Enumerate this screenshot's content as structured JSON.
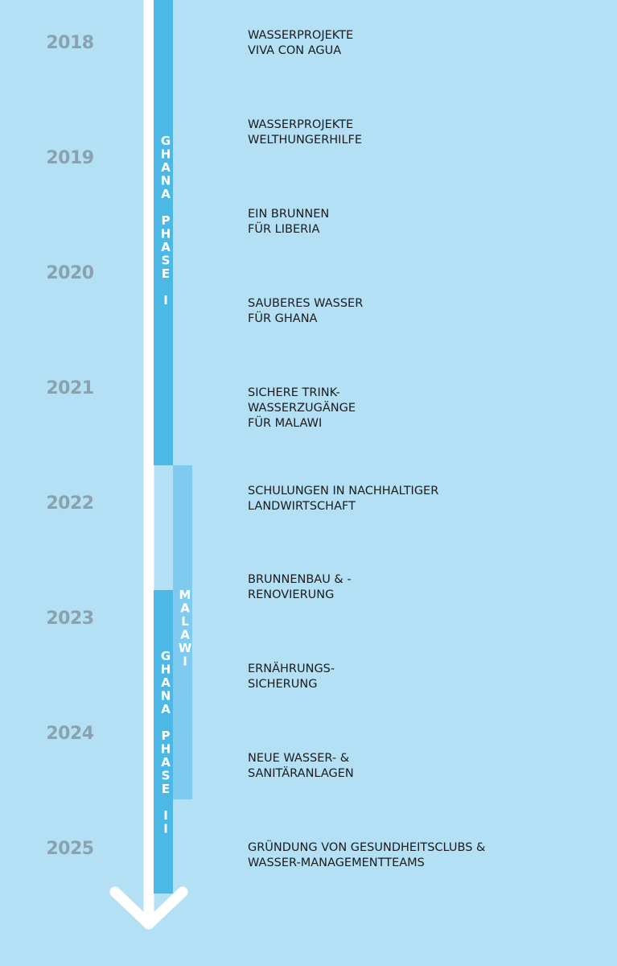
{
  "years": [
    "2018",
    "2019",
    "2020",
    "2021",
    "2022",
    "2023",
    "2024",
    "2025"
  ],
  "phases": [
    "GHANA PHASE I",
    "MALAWI",
    "GHANA PHASE II"
  ],
  "projects": [
    {
      "lines": [
        "WASSERPROJEKTE",
        "VIVA CON AGUA"
      ]
    },
    {
      "lines": [
        "WASSERPROJEKTE",
        "WELTHUNGERHILFE"
      ]
    },
    {
      "lines": [
        "EIN BRUNNEN",
        "FÜR LIBERIA"
      ]
    },
    {
      "lines": [
        "SAUBERES WASSER",
        "FÜR GHANA"
      ]
    },
    {
      "lines": [
        "SICHERE TRINK-",
        "WASSERZUGÄNGE",
        "FÜR MALAWI"
      ]
    },
    {
      "lines": [
        "SCHULUNGEN IN NACHHALTIGER",
        "LANDWIRTSCHAFT"
      ]
    },
    {
      "lines": [
        "BRUNNENBAU & -",
        "RENOVIERUNG"
      ]
    },
    {
      "lines": [
        "ERNÄHRUNGS-",
        "SICHERUNG"
      ]
    },
    {
      "lines": [
        "NEUE WASSER- &",
        "SANITÄRANLAGEN"
      ]
    },
    {
      "lines": [
        "GRÜNDUNG VON GESUNDHEITSCLUBS &",
        "WASSER-MANAGEMENTTEAMS"
      ]
    }
  ]
}
